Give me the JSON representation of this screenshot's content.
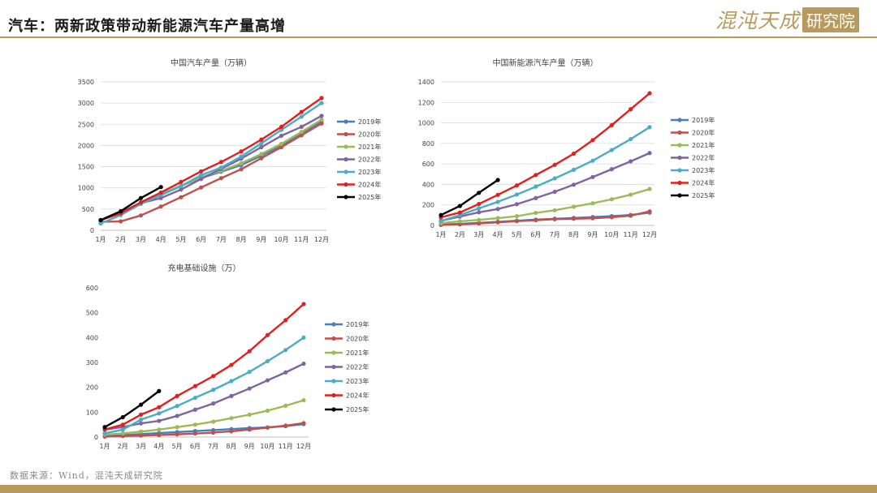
{
  "header": {
    "title": "汽车：两新政策带动新能源汽车产量高增",
    "brand_name": "混沌天成",
    "brand_tag": "研究院"
  },
  "footer": {
    "source": "数据来源：Wind，混沌天成研究院"
  },
  "colors": {
    "accent": "#b89a5e",
    "series": [
      "#4a7ebb",
      "#c0504d",
      "#9bbb59",
      "#8064a2",
      "#4bacc6",
      "#e02020",
      "#000000"
    ]
  },
  "chart_data": [
    {
      "type": "line",
      "title": "中国汽车产量（万辆）",
      "categories": [
        "1月",
        "2月",
        "3月",
        "4月",
        "5月",
        "6月",
        "7月",
        "8月",
        "9月",
        "10月",
        "11月",
        "12月"
      ],
      "ylim": [
        0,
        3500
      ],
      "yticks": [
        0,
        500,
        1000,
        1500,
        2000,
        2500,
        3000,
        3500
      ],
      "grid": true,
      "legend": "right",
      "series": [
        {
          "name": "2019年",
          "values": [
            235,
            420,
            650,
            850,
            1050,
            1230,
            1380,
            1540,
            1760,
            2000,
            2290,
            2570
          ]
        },
        {
          "name": "2020年",
          "values": [
            200,
            210,
            350,
            560,
            780,
            1010,
            1230,
            1440,
            1700,
            1960,
            2240,
            2520
          ]
        },
        {
          "name": "2021年",
          "values": [
            240,
            410,
            640,
            860,
            1050,
            1250,
            1400,
            1580,
            1800,
            2040,
            2320,
            2610
          ]
        },
        {
          "name": "2022年",
          "values": [
            240,
            420,
            640,
            760,
            960,
            1210,
            1450,
            1690,
            1960,
            2230,
            2440,
            2700
          ]
        },
        {
          "name": "2023年",
          "values": [
            160,
            360,
            620,
            830,
            1040,
            1300,
            1480,
            1740,
            2050,
            2370,
            2680,
            3000
          ]
        },
        {
          "name": "2024年",
          "values": [
            240,
            400,
            660,
            890,
            1140,
            1390,
            1610,
            1860,
            2140,
            2440,
            2790,
            3120
          ]
        },
        {
          "name": "2025年",
          "values": [
            240,
            450,
            760,
            1020,
            null,
            null,
            null,
            null,
            null,
            null,
            null,
            null
          ]
        }
      ]
    },
    {
      "type": "line",
      "title": "中国新能源汽车产量（万辆）",
      "categories": [
        "1月",
        "2月",
        "3月",
        "4月",
        "5月",
        "6月",
        "7月",
        "8月",
        "9月",
        "10月",
        "11月",
        "12月"
      ],
      "ylim": [
        0,
        1400
      ],
      "yticks": [
        0,
        200,
        400,
        600,
        800,
        1000,
        1200,
        1400
      ],
      "grid": true,
      "legend": "right",
      "series": [
        {
          "name": "2019年",
          "values": [
            9,
            15,
            25,
            35,
            46,
            57,
            65,
            73,
            81,
            90,
            102,
            124
          ]
        },
        {
          "name": "2020年",
          "values": [
            5,
            10,
            19,
            30,
            41,
            51,
            61,
            65,
            70,
            80,
            95,
            137
          ]
        },
        {
          "name": "2021年",
          "values": [
            22,
            40,
            54,
            71,
            90,
            122,
            148,
            182,
            216,
            255,
            300,
            355
          ]
        },
        {
          "name": "2022年",
          "values": [
            45,
            86,
            128,
            160,
            207,
            267,
            328,
            397,
            472,
            548,
            625,
            706
          ]
        },
        {
          "name": "2023年",
          "values": [
            42,
            101,
            166,
            230,
            301,
            378,
            459,
            543,
            631,
            735,
            842,
            958
          ]
        },
        {
          "name": "2024年",
          "values": [
            79,
            126,
            209,
            298,
            390,
            492,
            591,
            700,
            832,
            978,
            1134,
            1289
          ]
        },
        {
          "name": "2025年",
          "values": [
            101,
            190,
            318,
            443,
            null,
            null,
            null,
            null,
            null,
            null,
            null,
            null
          ]
        }
      ]
    },
    {
      "type": "line",
      "title": "充电基础设施（万）",
      "categories": [
        "1月",
        "2月",
        "3月",
        "4月",
        "5月",
        "6月",
        "7月",
        "8月",
        "9月",
        "10月",
        "11月",
        "12月"
      ],
      "ylim": [
        0,
        600
      ],
      "yticks": [
        0,
        100,
        200,
        300,
        400,
        500,
        600
      ],
      "grid": false,
      "legend": "right",
      "series": [
        {
          "name": "2019年",
          "values": [
            5,
            8,
            12,
            16,
            20,
            24,
            28,
            32,
            36,
            39,
            44,
            52
          ]
        },
        {
          "name": "2020年",
          "values": [
            2,
            4,
            6,
            8,
            11,
            14,
            18,
            23,
            30,
            38,
            46,
            56
          ]
        },
        {
          "name": "2021年",
          "values": [
            10,
            15,
            22,
            30,
            40,
            50,
            62,
            76,
            90,
            106,
            126,
            148
          ]
        },
        {
          "name": "2022年",
          "values": [
            30,
            40,
            55,
            65,
            85,
            110,
            135,
            165,
            195,
            228,
            260,
            295
          ]
        },
        {
          "name": "2023年",
          "values": [
            15,
            30,
            70,
            95,
            125,
            158,
            190,
            225,
            262,
            305,
            350,
            400
          ]
        },
        {
          "name": "2024年",
          "values": [
            30,
            50,
            90,
            120,
            165,
            205,
            245,
            290,
            345,
            410,
            470,
            535
          ]
        },
        {
          "name": "2025年",
          "values": [
            40,
            80,
            130,
            185,
            null,
            null,
            null,
            null,
            null,
            null,
            null,
            null
          ]
        }
      ]
    }
  ]
}
